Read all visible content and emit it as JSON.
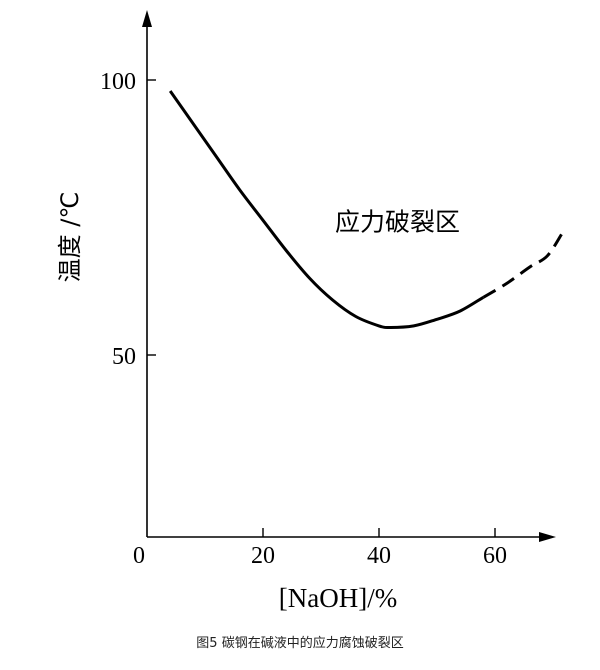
{
  "caption": "图5 碳钢在碱液中的应力腐蚀破裂区",
  "chart_data": {
    "type": "line",
    "title": "",
    "xlabel": "[NaOH]/%",
    "ylabel": "温度 /℃",
    "x_ticks": [
      0,
      20,
      40,
      60
    ],
    "y_ticks": [
      50,
      100
    ],
    "xlim": [
      0,
      70
    ],
    "ylim": [
      17,
      113
    ],
    "grid": false,
    "annotations": [
      {
        "text": "应力破裂区",
        "x": 45,
        "y": 75
      }
    ],
    "series": [
      {
        "style": "solid",
        "points": [
          [
            4,
            98
          ],
          [
            8,
            92
          ],
          [
            12,
            86
          ],
          [
            16,
            80
          ],
          [
            20,
            74.5
          ],
          [
            24,
            69
          ],
          [
            28,
            64
          ],
          [
            32,
            60
          ],
          [
            36,
            57
          ],
          [
            40,
            55.3
          ],
          [
            42,
            55
          ],
          [
            46,
            55.3
          ],
          [
            50,
            56.5
          ],
          [
            54,
            58
          ],
          [
            58,
            60.5
          ]
        ]
      },
      {
        "style": "dashed",
        "points": [
          [
            58,
            60.5
          ],
          [
            62,
            63
          ],
          [
            66,
            66
          ],
          [
            69,
            68
          ],
          [
            71.5,
            72
          ]
        ]
      }
    ]
  }
}
